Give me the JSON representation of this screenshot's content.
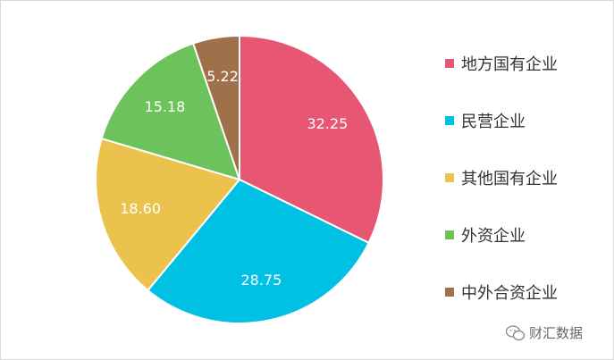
{
  "chart_data": {
    "type": "pie",
    "categories": [
      "地方国有企业",
      "民营企业",
      "其他国有企业",
      "外资企业",
      "中外合资企业"
    ],
    "values": [
      32.25,
      28.75,
      18.6,
      15.18,
      5.22
    ],
    "labels": [
      "32.25",
      "28.75",
      "18.60",
      "15.18",
      "5.22"
    ],
    "colors": [
      "#e75673",
      "#00c0e4",
      "#ebc24b",
      "#6dc35b",
      "#a0704a"
    ],
    "legend_position": "right",
    "start": "top",
    "direction": "clockwise"
  },
  "watermark": {
    "text": "财汇数据",
    "icon": "wechat-icon"
  }
}
